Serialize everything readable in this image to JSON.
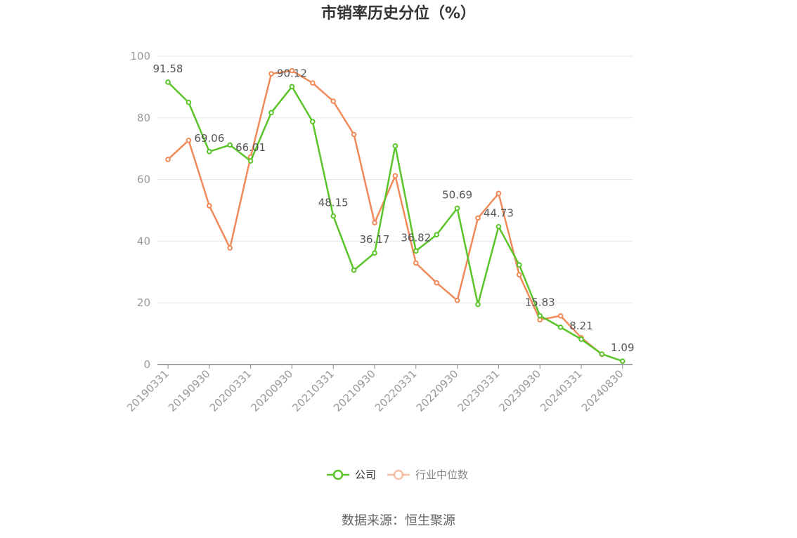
{
  "chart_data": {
    "type": "line",
    "title": "市销率历史分位（%）",
    "xlabel": "",
    "ylabel": "",
    "ylim": [
      0,
      100
    ],
    "yticks": [
      "0",
      "20",
      "40",
      "60",
      "80",
      "100"
    ],
    "grid": true,
    "legend_position": "bottom",
    "x_tick_labels": [
      "20190331",
      "20190930",
      "20200331",
      "20200930",
      "20210331",
      "20210930",
      "20220331",
      "20220930",
      "20230331",
      "20230930",
      "20240331",
      "20240830"
    ],
    "x_tick_indices": [
      0,
      2,
      4,
      6,
      8,
      10,
      12,
      14,
      16,
      18,
      20,
      22
    ],
    "series": [
      {
        "name": "公司",
        "color": "#5bc42a",
        "values": [
          91.58,
          85.0,
          69.06,
          71.2,
          66.01,
          81.7,
          90.12,
          78.8,
          48.15,
          30.6,
          36.17,
          70.9,
          36.82,
          42.1,
          50.69,
          19.5,
          44.73,
          32.3,
          15.83,
          12.1,
          8.21,
          3.4,
          1.09
        ],
        "labels": [
          "91.58",
          "",
          "69.06",
          "",
          "66.01",
          "",
          "90.12",
          "",
          "48.15",
          "",
          "36.17",
          "",
          "36.82",
          "",
          "50.69",
          "",
          "44.73",
          "",
          "15.83",
          "",
          "8.21",
          "",
          "1.09"
        ]
      },
      {
        "name": "行业中位数",
        "color": "#f08a5a",
        "values": [
          66.5,
          72.7,
          51.5,
          37.8,
          67.3,
          94.3,
          95.3,
          91.3,
          85.4,
          74.6,
          46.0,
          61.2,
          32.9,
          26.5,
          20.8,
          47.5,
          55.5,
          29.1,
          14.5,
          15.8,
          8.7,
          3.3,
          null
        ]
      }
    ]
  },
  "source_text": "数据来源：恒生聚源"
}
